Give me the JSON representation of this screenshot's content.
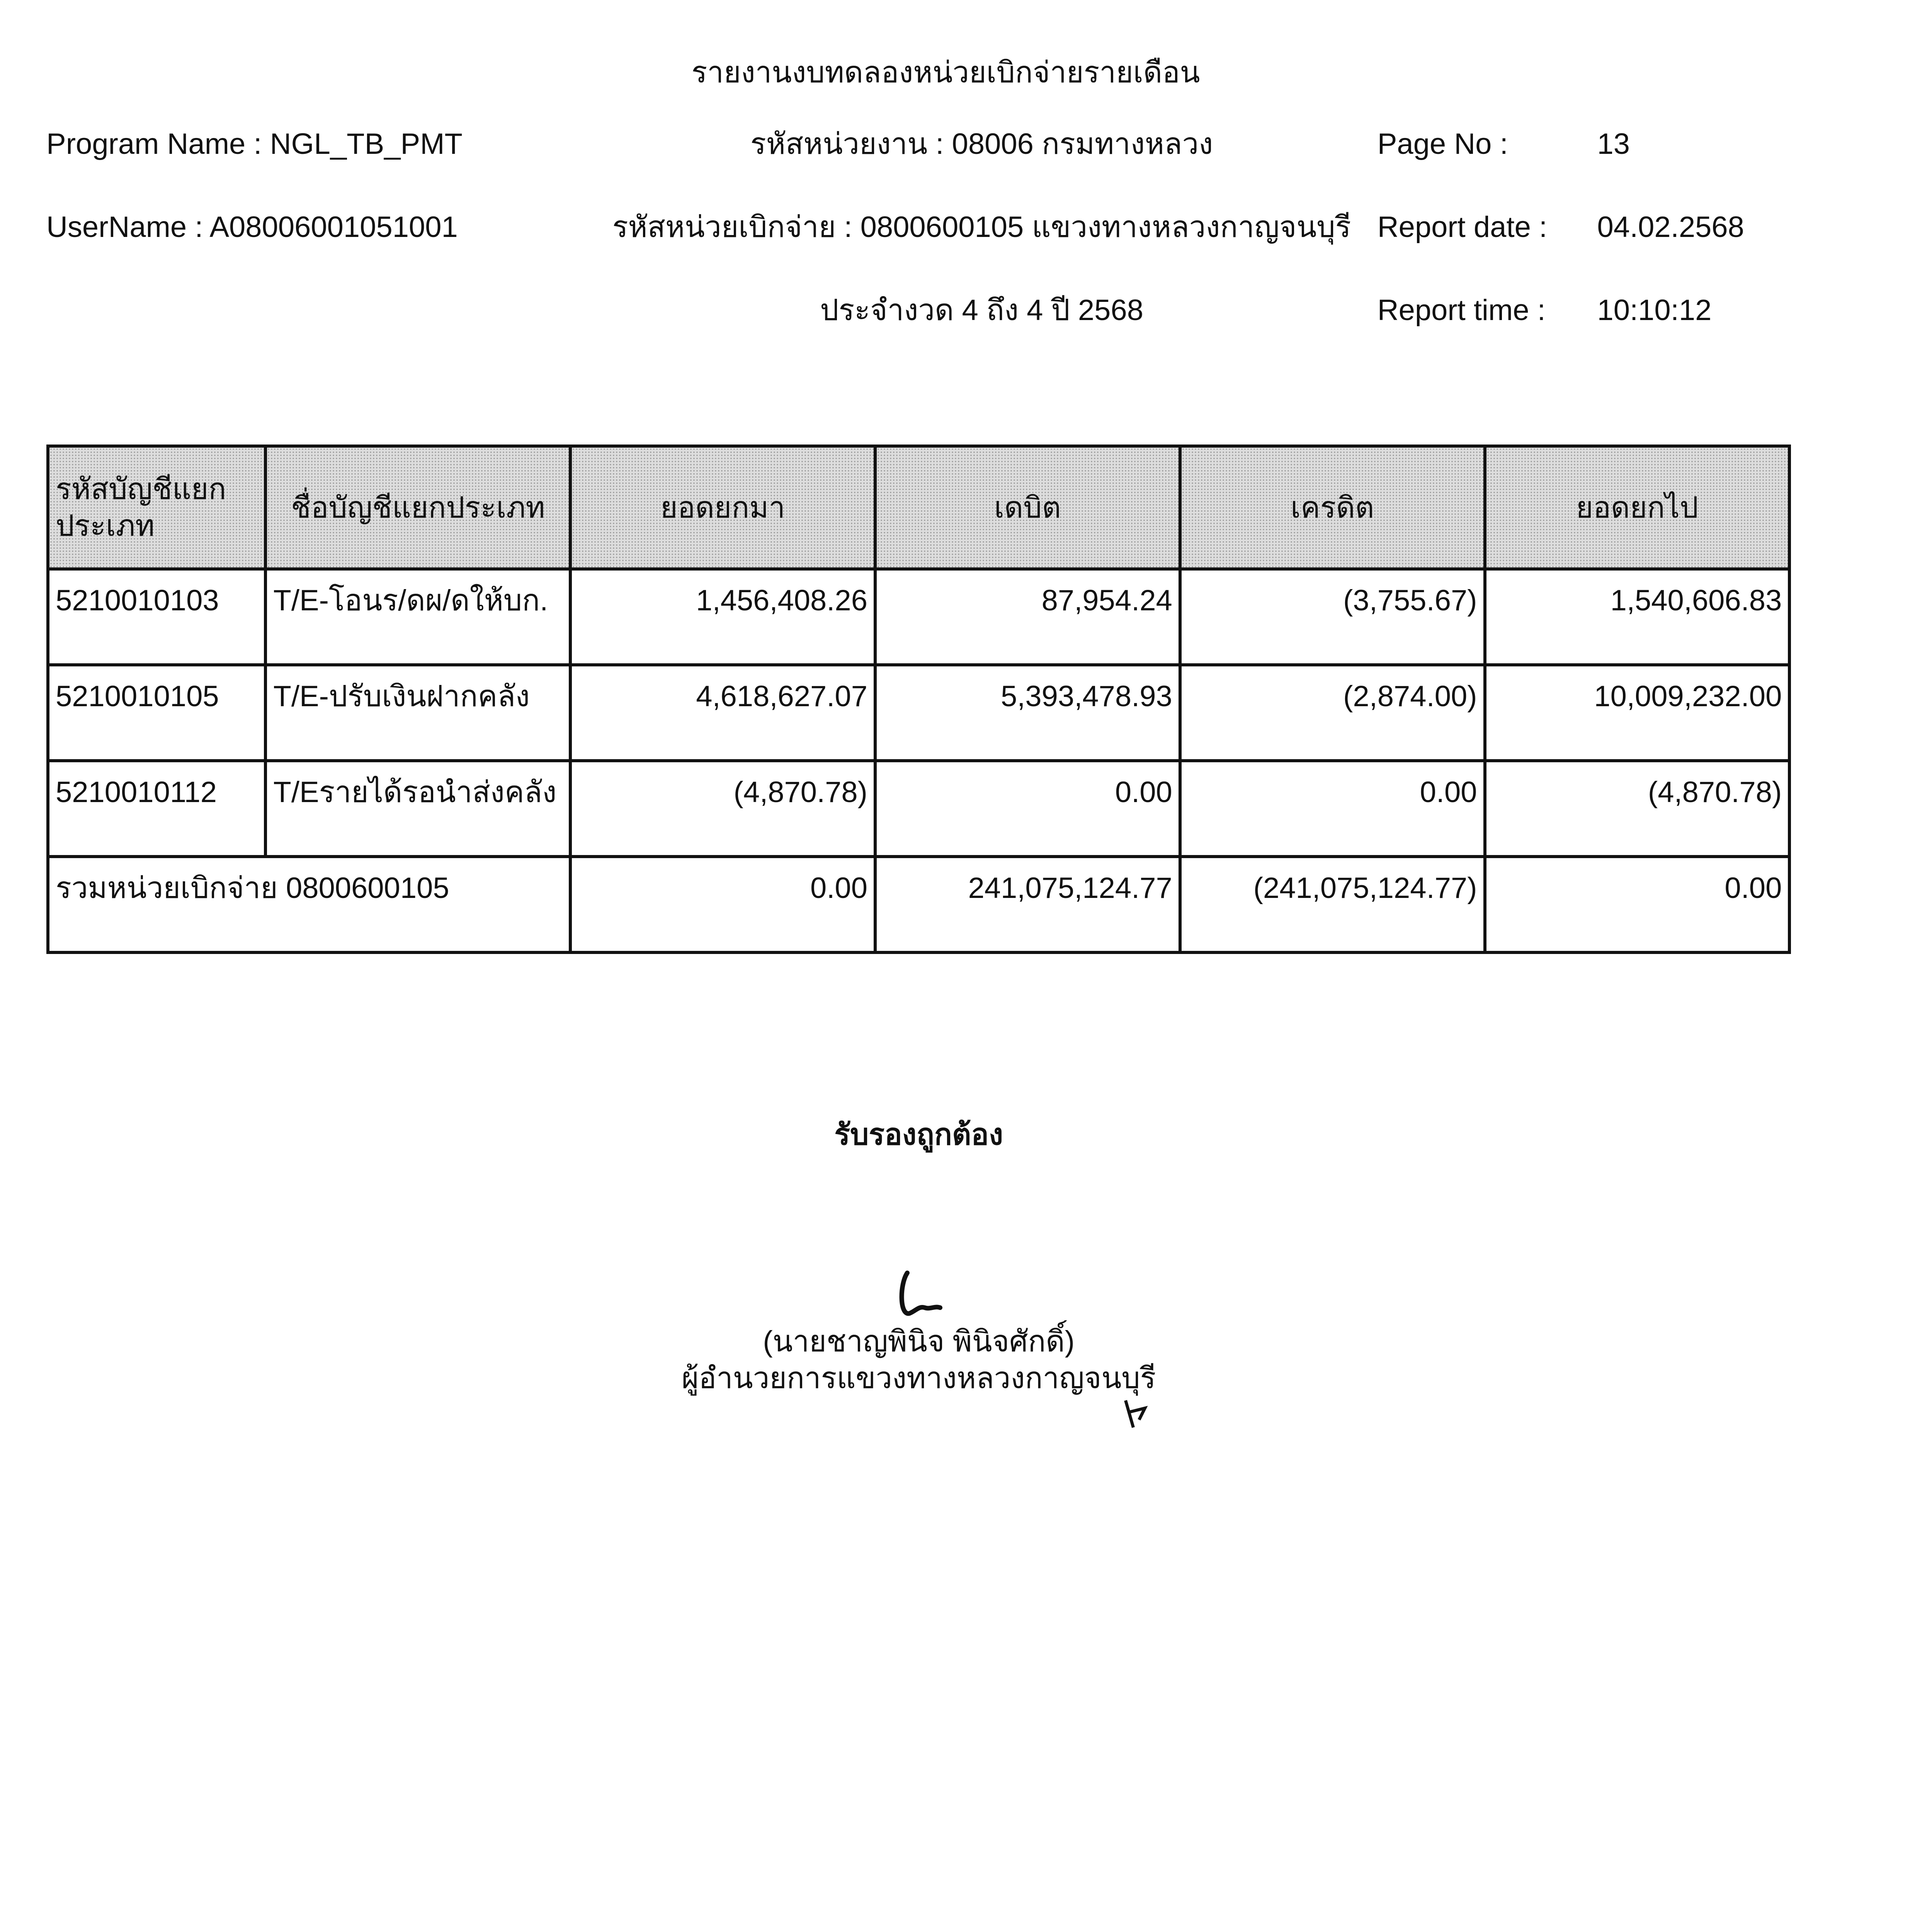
{
  "header": {
    "title": "รายงานงบทดลองหน่วยเบิกจ่ายรายเดือน",
    "program_name": "Program Name : NGL_TB_PMT",
    "username": "UserName : A08006001051001",
    "agency": "รหัสหน่วยงาน : 08006 กรมทางหลวง",
    "disbursing_unit": "รหัสหน่วยเบิกจ่าย : 0800600105 แขวงทางหลวงกาญจนบุรี",
    "period": "ประจำงวด 4 ถึง 4 ปี 2568",
    "page_no_label": "Page No :",
    "page_no": "13",
    "report_date_label": "Report date :",
    "report_date": "04.02.2568",
    "report_time_label": "Report time :",
    "report_time": "10:10:12"
  },
  "table": {
    "columns": [
      "รหัสบัญชีแยกประเภท",
      "ชื่อบัญชีแยกประเภท",
      "ยอดยกมา",
      "เดบิต",
      "เครดิต",
      "ยอดยกไป"
    ],
    "rows": [
      {
        "code": "5210010103",
        "name": "T/E-โอนร/ดผ/ดให้บก.",
        "opening": "1,456,408.26",
        "debit": "87,954.24",
        "credit": "(3,755.67)",
        "closing": "1,540,606.83"
      },
      {
        "code": "5210010105",
        "name": "T/E-ปรับเงินฝากคลัง",
        "opening": "4,618,627.07",
        "debit": "5,393,478.93",
        "credit": "(2,874.00)",
        "closing": "10,009,232.00"
      },
      {
        "code": "5210010112",
        "name": "T/Eรายได้รอนำส่งคลัง",
        "opening": "(4,870.78)",
        "debit": "0.00",
        "credit": "0.00",
        "closing": "(4,870.78)"
      }
    ],
    "total": {
      "label": "รวมหน่วยเบิกจ่าย 0800600105",
      "opening": "0.00",
      "debit": "241,075,124.77",
      "credit": "(241,075,124.77)",
      "closing": "0.00"
    }
  },
  "footer": {
    "certification": "รับรองถูกต้อง",
    "signer_name": "(นายชาญพินิจ  พินิจศักดิ์)",
    "signer_title": "ผู้อำนวยการแขวงทางหลวงกาญจนบุรี"
  }
}
